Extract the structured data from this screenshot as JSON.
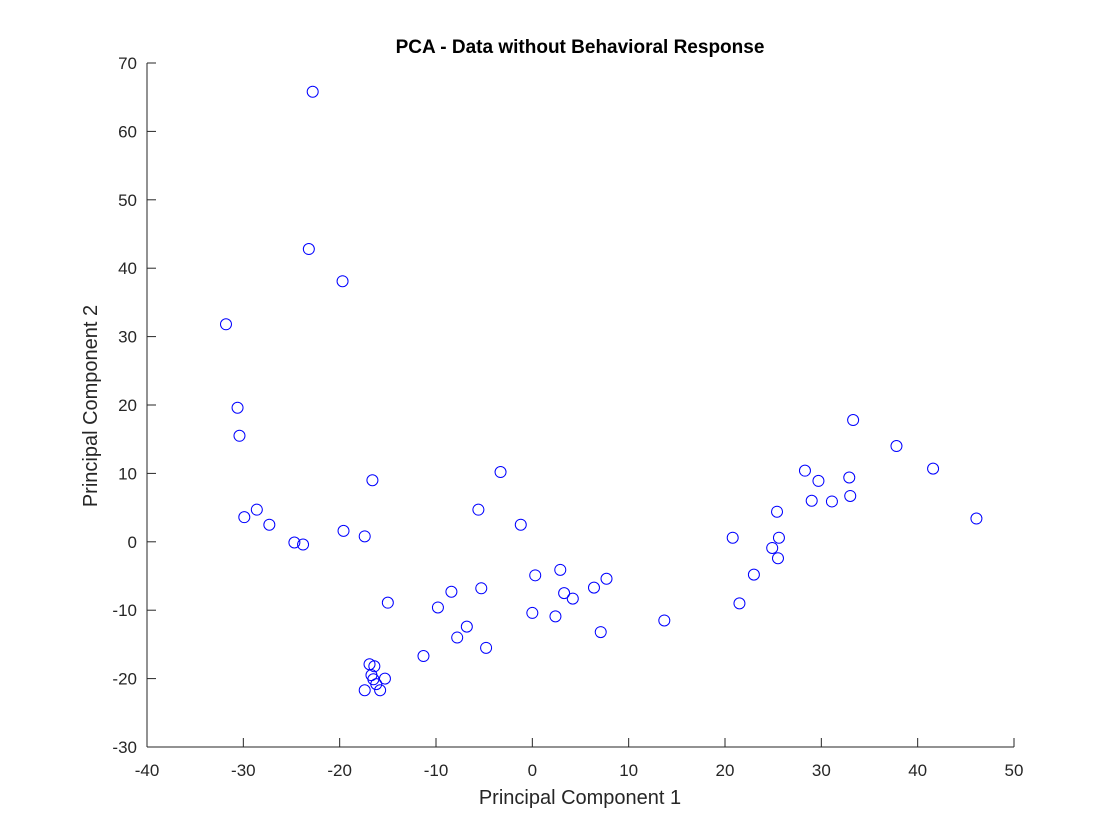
{
  "chart_data": {
    "type": "scatter",
    "title": "PCA - Data without Behavioral Response",
    "xlabel": "Principal Component 1",
    "ylabel": "Principal Component 2",
    "xlim": [
      -40,
      50
    ],
    "ylim": [
      -30,
      70
    ],
    "xticks": [
      "-40",
      "-30",
      "-20",
      "-10",
      "0",
      "10",
      "20",
      "30",
      "40",
      "50"
    ],
    "yticks": [
      "-30",
      "-20",
      "-10",
      "0",
      "10",
      "20",
      "30",
      "40",
      "50",
      "60",
      "70"
    ],
    "xtick_values": [
      -40,
      -30,
      -20,
      -10,
      0,
      10,
      20,
      30,
      40,
      50
    ],
    "ytick_values": [
      -30,
      -20,
      -10,
      0,
      10,
      20,
      30,
      40,
      50,
      60,
      70
    ],
    "grid": false,
    "marker": "circle-open",
    "marker_color": "#0000ff",
    "series": [
      {
        "x": [
          -22.8,
          -23.2,
          -19.7,
          -31.8,
          -30.6,
          -30.4,
          -16.6,
          -28.6,
          -29.9,
          -27.3,
          -24.7,
          -23.8,
          -19.6,
          -17.4,
          -15.0,
          -16.9,
          -16.4,
          -16.7,
          -16.5,
          -16.2,
          -15.3,
          -17.4,
          -15.8,
          -11.3,
          -9.8,
          -8.4,
          -7.8,
          -6.8,
          -5.6,
          -5.3,
          -4.8,
          -3.3,
          -1.2,
          0.0,
          0.3,
          2.4,
          2.9,
          3.3,
          4.2,
          6.4,
          7.1,
          7.7,
          13.7,
          20.8,
          21.5,
          23.0,
          24.9,
          25.4,
          25.5,
          25.6,
          28.3,
          29.0,
          29.7,
          31.1,
          32.9,
          33.0,
          33.3,
          37.8,
          41.6,
          46.1
        ],
        "y": [
          65.8,
          42.8,
          38.1,
          31.8,
          19.6,
          15.5,
          9.0,
          4.7,
          3.6,
          2.5,
          -0.1,
          -0.4,
          1.6,
          0.8,
          -8.9,
          -17.9,
          -18.2,
          -19.5,
          -20.1,
          -20.8,
          -20.0,
          -21.7,
          -21.7,
          -16.7,
          -9.6,
          -7.3,
          -14.0,
          -12.4,
          4.7,
          -6.8,
          -15.5,
          10.2,
          2.5,
          -10.4,
          -4.9,
          -10.9,
          -4.1,
          -7.5,
          -8.3,
          -6.7,
          -13.2,
          -5.4,
          -11.5,
          0.6,
          -9.0,
          -4.8,
          -0.9,
          4.4,
          -2.4,
          0.6,
          10.4,
          6.0,
          8.9,
          5.9,
          9.4,
          6.7,
          17.8,
          14.0,
          10.7,
          3.4
        ]
      }
    ]
  }
}
